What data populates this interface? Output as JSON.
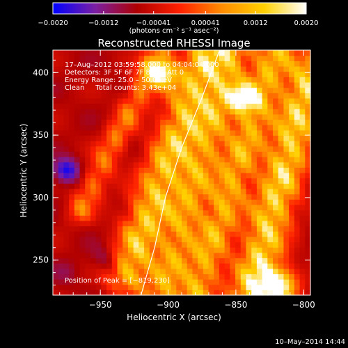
{
  "chart_data": {
    "type": "heatmap",
    "title": "Reconstructed RHESSI Image",
    "xlabel": "Heliocentric X (arcsec)",
    "ylabel": "Heliocentric Y (arcsec)",
    "xlim": [
      -985,
      -795
    ],
    "ylim": [
      222,
      418
    ],
    "x_ticks": [
      -950,
      -900,
      -850,
      -800
    ],
    "y_ticks": [
      250,
      300,
      350,
      400
    ],
    "x_tick_labels": [
      "−950",
      "−900",
      "−850",
      "−800"
    ],
    "y_tick_labels": [
      "250",
      "300",
      "350",
      "400"
    ],
    "colorbar": {
      "min": -0.002,
      "max": 0.002,
      "ticks": [
        -0.002,
        -0.0012,
        -0.00041,
        0.00041,
        0.0012,
        0.002
      ],
      "tick_labels": [
        "−0.0020",
        "−0.0012",
        "−0.00041",
        "0.00041",
        "0.0012",
        "0.0020"
      ],
      "unit_label": "(photons cm⁻² s⁻¹ asec⁻²)",
      "colors": [
        "#0000ff",
        "#7b1fa2",
        "#b00000",
        "#ff2000",
        "#ff8c00",
        "#ffd000",
        "#ffffff"
      ]
    },
    "annotations": {
      "time": "17–Aug–2012 03:59:58.000 to 04:04:04.000",
      "detectors": "Detectors: 3F 5F 6F 7F 8F 9F Att 0",
      "energy": "Energy Range: 25.0 – 50.0 keV",
      "clean": "Clean     Total counts: 3.43e+04",
      "peak": "Position of Peak = [−819,230]"
    },
    "peak": [
      -819,
      230
    ],
    "limb_arc_points": [
      [
        -920,
        222
      ],
      [
        -910,
        260
      ],
      [
        -902,
        300
      ],
      [
        -890,
        340
      ],
      [
        -875,
        380
      ],
      [
        -862,
        418
      ]
    ],
    "features": [
      {
        "kind": "ridge",
        "from": [
          -930,
          240
        ],
        "to": [
          -870,
          420
        ],
        "width_arcsec": 16,
        "value": 0.0016
      },
      {
        "kind": "ridge",
        "from": [
          -905,
          222
        ],
        "to": [
          -850,
          420
        ],
        "width_arcsec": 14,
        "value": 0.0011
      },
      {
        "kind": "ridge",
        "from": [
          -880,
          222
        ],
        "to": [
          -820,
          420
        ],
        "width_arcsec": 14,
        "value": 0.0013
      },
      {
        "kind": "ridge",
        "from": [
          -840,
          222
        ],
        "to": [
          -795,
          400
        ],
        "width_arcsec": 16,
        "value": 0.0018
      },
      {
        "kind": "ridge",
        "from": [
          -965,
          290
        ],
        "to": [
          -905,
          420
        ],
        "width_arcsec": 10,
        "value": 0.0007
      },
      {
        "kind": "blob",
        "center": [
          -819,
          230
        ],
        "radius": 14,
        "value": 0.002
      },
      {
        "kind": "blob",
        "center": [
          -905,
          400
        ],
        "radius": 12,
        "value": 0.0017
      },
      {
        "kind": "blob",
        "center": [
          -845,
          380
        ],
        "radius": 11,
        "value": 0.0015
      },
      {
        "kind": "blob",
        "center": [
          -975,
          322
        ],
        "radius": 10,
        "value": -0.0019
      },
      {
        "kind": "blob",
        "center": [
          -945,
          250
        ],
        "radius": 12,
        "value": -0.0012
      },
      {
        "kind": "blob",
        "center": [
          -975,
          240
        ],
        "radius": 10,
        "value": -0.0009
      }
    ]
  },
  "footer": {
    "timestamp": "10–May–2014 14:44"
  }
}
